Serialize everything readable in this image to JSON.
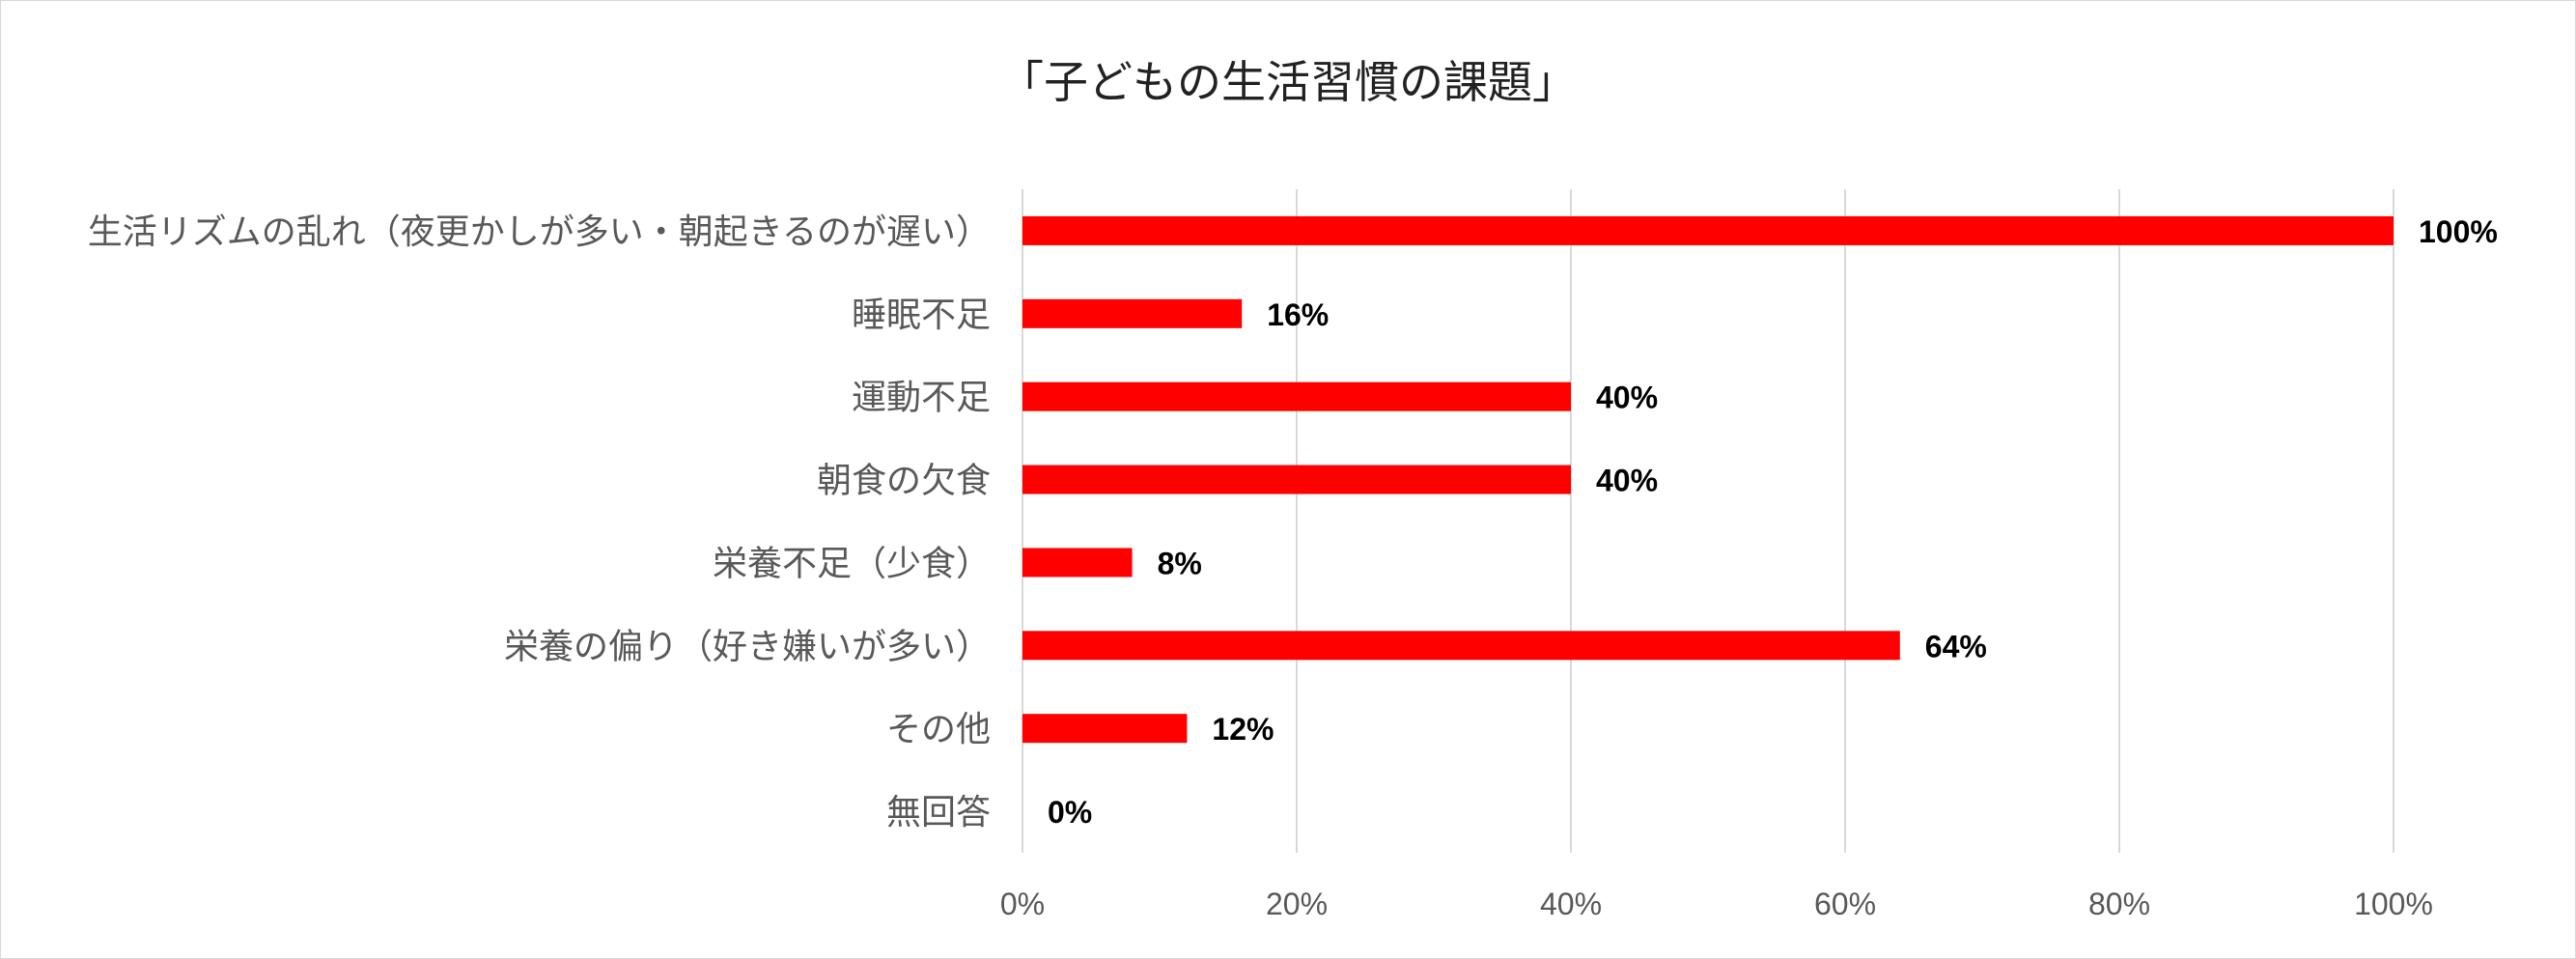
{
  "chart_data": {
    "type": "bar",
    "orientation": "horizontal",
    "title": "「子どもの生活習慣の課題」",
    "categories": [
      "生活リズムの乱れ（夜更かしが多い・朝起きるのが遅い）",
      "睡眠不足",
      "運動不足",
      "朝食の欠食",
      "栄養不足（少食）",
      "栄養の偏り（好き嫌いが多い）",
      "その他",
      "無回答"
    ],
    "values": [
      100,
      16,
      40,
      40,
      8,
      64,
      12,
      0
    ],
    "value_labels": [
      "100%",
      "16%",
      "40%",
      "40%",
      "8%",
      "64%",
      "12%",
      "0%"
    ],
    "xlim": [
      0,
      100
    ],
    "x_ticks": [
      "0%",
      "20%",
      "40%",
      "60%",
      "80%",
      "100%"
    ],
    "grid": true,
    "legend": "none",
    "bar_color": "#ff0000"
  }
}
